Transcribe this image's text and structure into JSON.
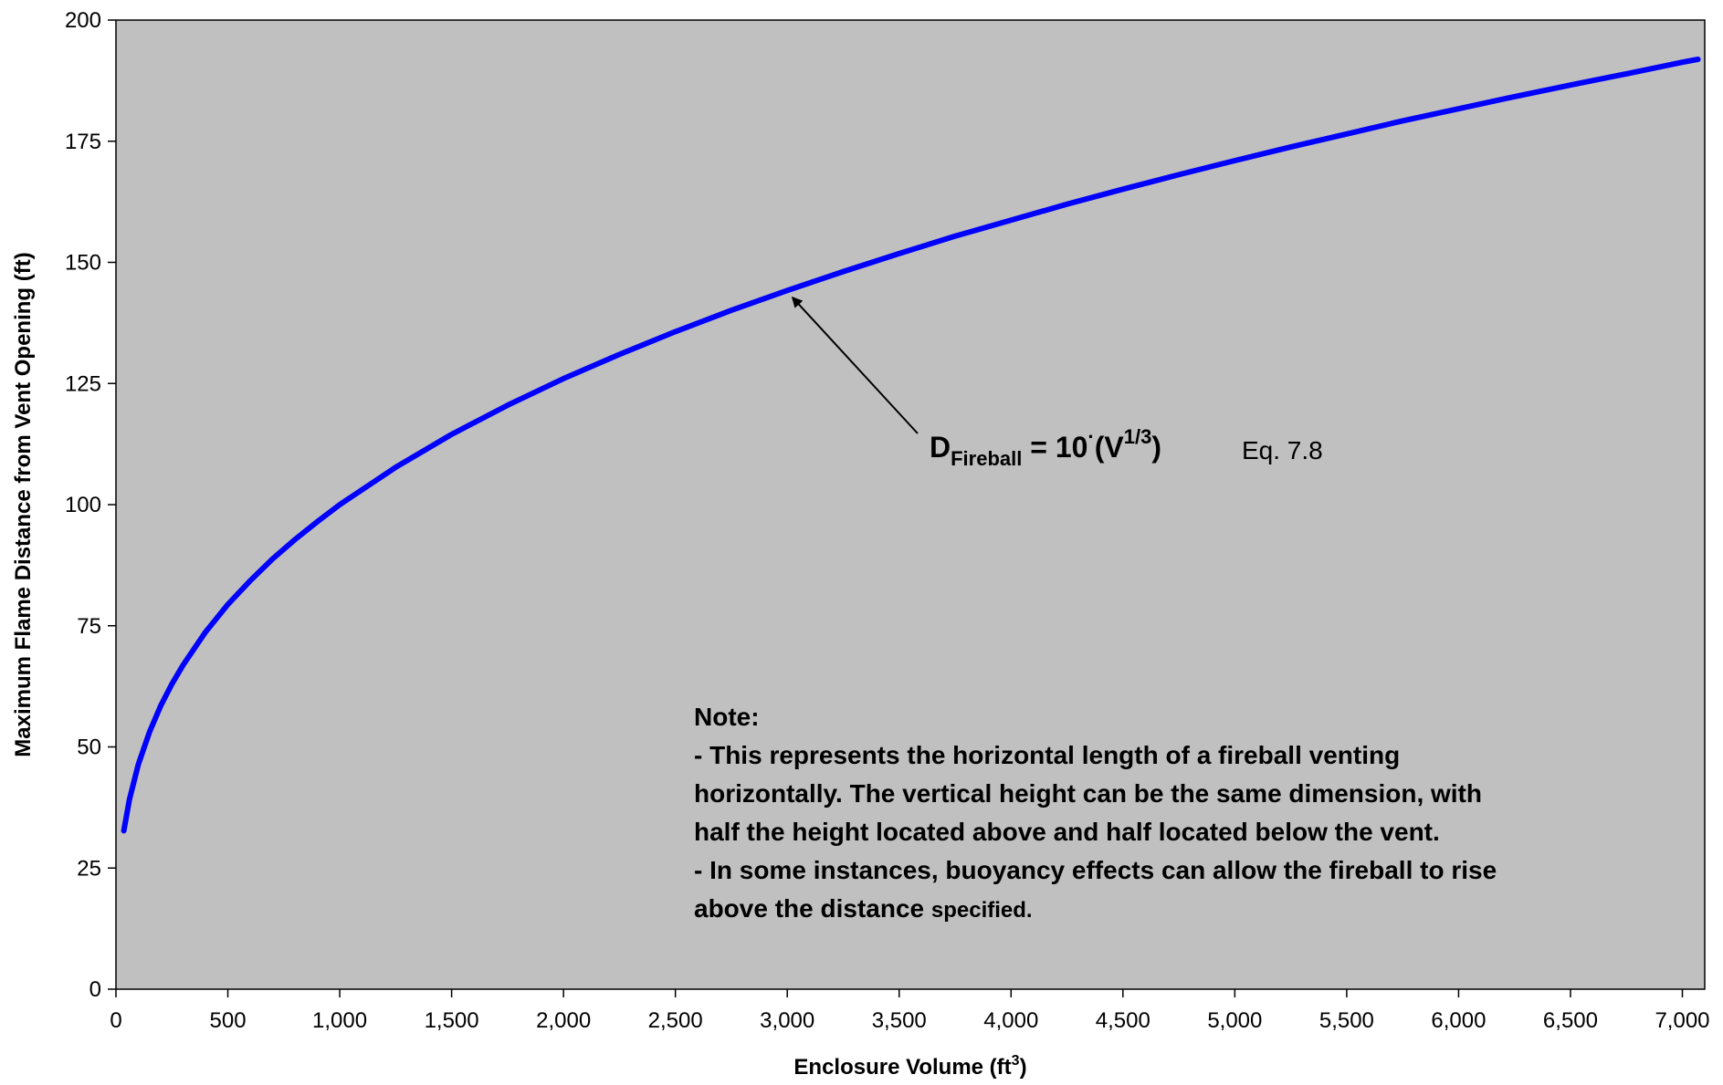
{
  "chart_data": {
    "type": "line",
    "xlabel": "Enclosure Volume (ft",
    "xlabel_sup": "3",
    "xlabel_end": ")",
    "ylabel": "Maximum Flame Distance from Vent Opening (ft)",
    "xlim": [
      0,
      7100
    ],
    "ylim": [
      0,
      200
    ],
    "xticks": [
      0,
      500,
      1000,
      1500,
      2000,
      2500,
      3000,
      3500,
      4000,
      4500,
      5000,
      5500,
      6000,
      6500,
      7000
    ],
    "xtick_labels": [
      "0",
      "500",
      "1,000",
      "1,500",
      "2,000",
      "2,500",
      "3,000",
      "3,500",
      "4,000",
      "4,500",
      "5,000",
      "5,500",
      "6,000",
      "6,500",
      "7,000"
    ],
    "yticks": [
      0,
      25,
      50,
      75,
      100,
      125,
      150,
      175,
      200
    ],
    "ytick_labels": [
      "0",
      "25",
      "50",
      "75",
      "100",
      "125",
      "150",
      "175",
      "200"
    ],
    "grid": false,
    "background_color": "#c0c0c0",
    "line_color": "#0000ff",
    "series": [
      {
        "x": [
          35,
          60,
          100,
          150,
          200,
          250,
          300,
          400,
          500,
          600,
          700,
          800,
          900,
          1000,
          1250,
          1500,
          1750,
          2000,
          2250,
          2500,
          2750,
          3000,
          3250,
          3500,
          3750,
          4000,
          4250,
          4500,
          4750,
          5000,
          5250,
          5500,
          5750,
          6000,
          6250,
          6500,
          6750,
          7000,
          7070
        ],
        "y": [
          32.7,
          39.1,
          46.4,
          53.1,
          58.5,
          63.0,
          66.9,
          73.7,
          79.4,
          84.3,
          88.8,
          92.8,
          96.5,
          100.0,
          107.7,
          114.5,
          120.5,
          126.0,
          131.0,
          135.7,
          140.1,
          144.2,
          148.1,
          151.8,
          155.4,
          158.7,
          162.0,
          165.1,
          168.1,
          171.0,
          173.8,
          176.5,
          179.2,
          181.7,
          184.2,
          186.6,
          188.9,
          191.3,
          191.9
        ]
      }
    ]
  },
  "annotation": {
    "formula_main": "D",
    "formula_sub": "Fireball",
    "formula_mid": " = 10",
    "formula_dot": "·",
    "formula_paren_open": "(V",
    "formula_sup": "1/3",
    "formula_paren_close": ")",
    "eq_label": "Eq. 7.8",
    "arrow_target": [
      3000,
      144.2
    ]
  },
  "note": {
    "title": "Note:",
    "line1": "- This represents the horizontal length of a fireball venting",
    "line2": "horizontally. The vertical height can be the same dimension, with",
    "line3": "half the height located above and half located below the vent.",
    "line4": "- In some instances, buoyancy effects can allow the fireball to rise",
    "line5_main": "above the distance ",
    "line5_small": "specified."
  }
}
